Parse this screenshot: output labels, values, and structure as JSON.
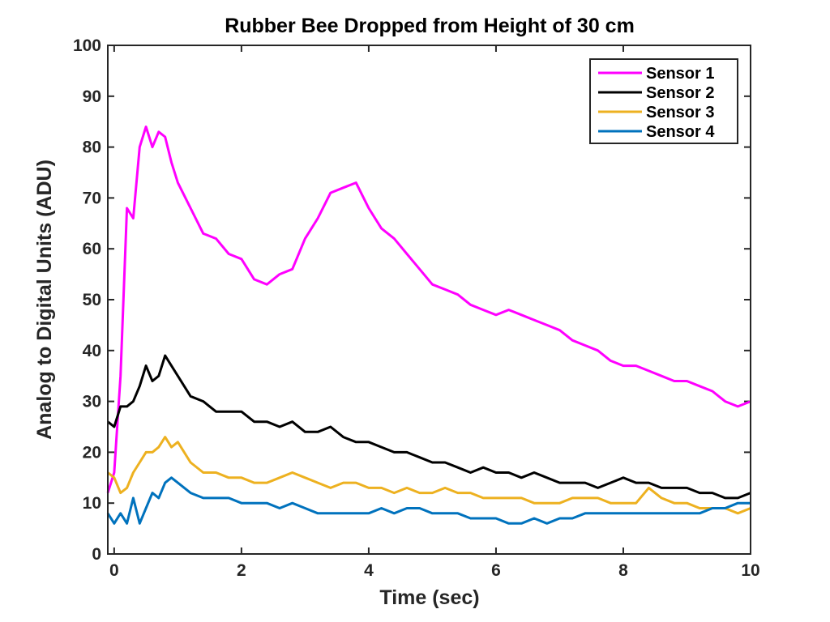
{
  "chart_data": {
    "type": "line",
    "title": "Rubber Bee Dropped from Height of 30 cm",
    "xlabel": "Time (sec)",
    "ylabel": "Analog to Digital Units (ADU)",
    "xlim": [
      -0.1,
      10
    ],
    "ylim": [
      0,
      100
    ],
    "xticks": [
      0,
      2,
      4,
      6,
      8,
      10
    ],
    "yticks": [
      0,
      10,
      20,
      30,
      40,
      50,
      60,
      70,
      80,
      90,
      100
    ],
    "grid": false,
    "legend_position": "top-right",
    "x": [
      -0.1,
      0,
      0.1,
      0.2,
      0.3,
      0.4,
      0.5,
      0.6,
      0.7,
      0.8,
      0.9,
      1.0,
      1.2,
      1.4,
      1.6,
      1.8,
      2.0,
      2.2,
      2.4,
      2.6,
      2.8,
      3.0,
      3.2,
      3.4,
      3.6,
      3.8,
      4.0,
      4.2,
      4.4,
      4.6,
      4.8,
      5.0,
      5.2,
      5.4,
      5.6,
      5.8,
      6.0,
      6.2,
      6.4,
      6.6,
      6.8,
      7.0,
      7.2,
      7.4,
      7.6,
      7.8,
      8.0,
      8.2,
      8.4,
      8.6,
      8.8,
      9.0,
      9.2,
      9.4,
      9.6,
      9.8,
      10.0
    ],
    "series": [
      {
        "name": "Sensor 1",
        "color": "#ff00ff",
        "values": [
          12,
          16,
          35,
          68,
          66,
          80,
          84,
          80,
          83,
          82,
          77,
          73,
          68,
          63,
          62,
          59,
          58,
          54,
          53,
          55,
          56,
          62,
          66,
          71,
          72,
          73,
          68,
          64,
          62,
          59,
          56,
          53,
          52,
          51,
          49,
          48,
          47,
          48,
          47,
          46,
          45,
          44,
          42,
          41,
          40,
          38,
          37,
          37,
          36,
          35,
          34,
          34,
          33,
          32,
          30,
          29,
          30
        ]
      },
      {
        "name": "Sensor 2",
        "color": "#000000",
        "values": [
          26,
          25,
          29,
          29,
          30,
          33,
          37,
          34,
          35,
          39,
          37,
          35,
          31,
          30,
          28,
          28,
          28,
          26,
          26,
          25,
          26,
          24,
          24,
          25,
          23,
          22,
          22,
          21,
          20,
          20,
          19,
          18,
          18,
          17,
          16,
          17,
          16,
          16,
          15,
          16,
          15,
          14,
          14,
          14,
          13,
          14,
          15,
          14,
          14,
          13,
          13,
          13,
          12,
          12,
          11,
          11,
          12
        ]
      },
      {
        "name": "Sensor 3",
        "color": "#edb120",
        "values": [
          16,
          15,
          12,
          13,
          16,
          18,
          20,
          20,
          21,
          23,
          21,
          22,
          18,
          16,
          16,
          15,
          15,
          14,
          14,
          15,
          16,
          15,
          14,
          13,
          14,
          14,
          13,
          13,
          12,
          13,
          12,
          12,
          13,
          12,
          12,
          11,
          11,
          11,
          11,
          10,
          10,
          10,
          11,
          11,
          11,
          10,
          10,
          10,
          13,
          11,
          10,
          10,
          9,
          9,
          9,
          8,
          9
        ]
      },
      {
        "name": "Sensor 4",
        "color": "#0072bd",
        "values": [
          8,
          6,
          8,
          6,
          11,
          6,
          9,
          12,
          11,
          14,
          15,
          14,
          12,
          11,
          11,
          11,
          10,
          10,
          10,
          9,
          10,
          9,
          8,
          8,
          8,
          8,
          8,
          9,
          8,
          9,
          9,
          8,
          8,
          8,
          7,
          7,
          7,
          6,
          6,
          7,
          6,
          7,
          7,
          8,
          8,
          8,
          8,
          8,
          8,
          8,
          8,
          8,
          8,
          9,
          9,
          10,
          10
        ]
      }
    ]
  }
}
